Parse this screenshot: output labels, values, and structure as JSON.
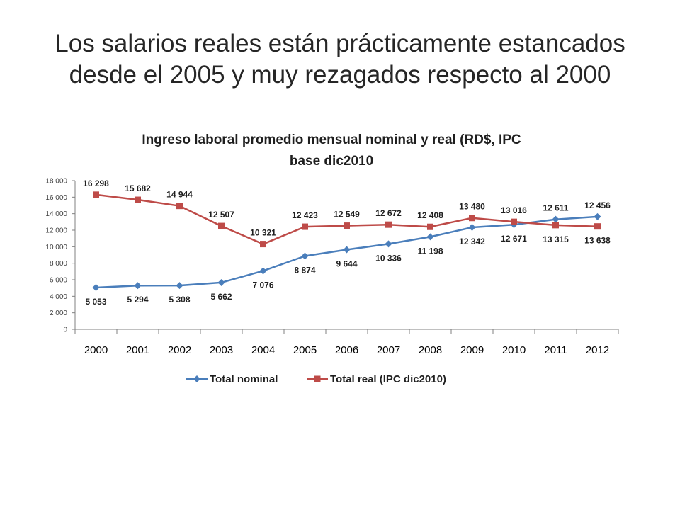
{
  "slide": {
    "title_line1": "Los salarios reales están prácticamente estancados",
    "title_line2": "desde el 2005 y muy rezagados respecto al 2000"
  },
  "chart_data": {
    "type": "line",
    "title_lines": [
      "Ingreso laboral promedio mensual nominal y real (RD$,  IPC",
      "base dic2010"
    ],
    "xlabel": "",
    "ylabel": "",
    "categories": [
      "2000",
      "2001",
      "2002",
      "2003",
      "2004",
      "2005",
      "2006",
      "2007",
      "2008",
      "2009",
      "2010",
      "2011",
      "2012"
    ],
    "ylim": [
      0,
      18000
    ],
    "yticks": [
      0,
      2000,
      4000,
      6000,
      8000,
      10000,
      12000,
      14000,
      16000,
      18000
    ],
    "ytick_labels": [
      "0",
      "2 000",
      "4 000",
      "6 000",
      "8 000",
      "10 000",
      "12 000",
      "14 000",
      "16 000",
      "18 000"
    ],
    "grid": false,
    "legend_position": "bottom",
    "series": [
      {
        "name": "Total nominal",
        "color": "#4a7ebb",
        "marker": "diamond",
        "values": [
          5053,
          5294,
          5308,
          5662,
          7076,
          8874,
          9644,
          10336,
          11198,
          12342,
          12671,
          13315,
          13638
        ],
        "labels": [
          "5 053",
          "5 294",
          "5 308",
          "5 662",
          "7 076",
          "8 874",
          "9 644",
          "10 336",
          "11 198",
          "12 342",
          "12 671",
          "13 315",
          "13 638"
        ]
      },
      {
        "name": "Total real (IPC dic2010)",
        "color": "#be4b48",
        "marker": "square",
        "values": [
          16298,
          15682,
          14944,
          12507,
          10321,
          12423,
          12549,
          12672,
          12408,
          13480,
          13016,
          12611,
          12456
        ],
        "labels": [
          "16 298",
          "15 682",
          "14 944",
          "12 507",
          "10 321",
          "12 423",
          "12 549",
          "12 672",
          "12 408",
          "13 480",
          "13 016",
          "12 611",
          "12 456"
        ]
      }
    ]
  }
}
